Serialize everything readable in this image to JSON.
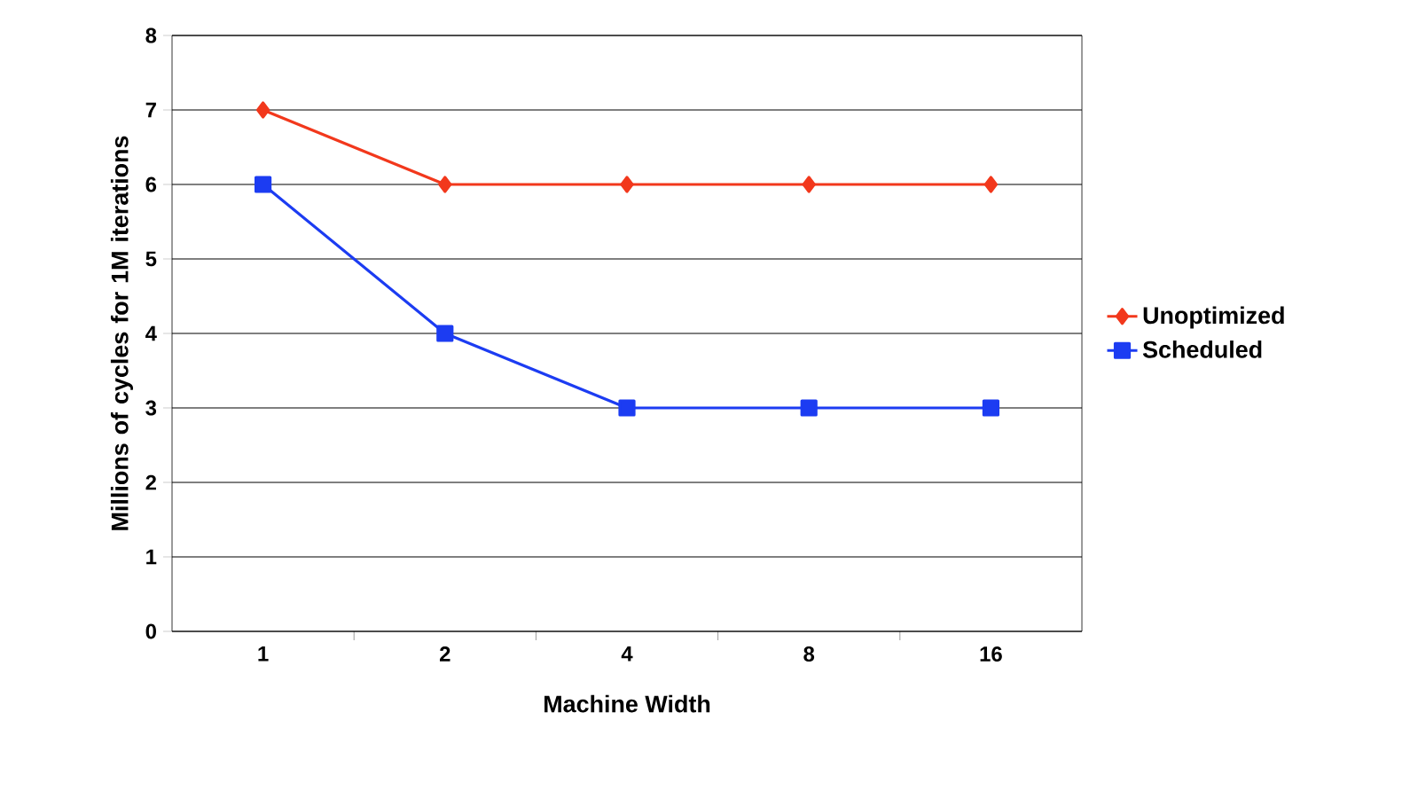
{
  "chart_data": {
    "type": "line",
    "xlabel": "Machine Width",
    "ylabel": "Millions of cycles for 1M iterations",
    "categories": [
      "1",
      "2",
      "4",
      "8",
      "16"
    ],
    "series": [
      {
        "name": "Unoptimized",
        "color": "#f2381c",
        "marker": "diamond",
        "values": [
          7,
          6,
          6,
          6,
          6
        ]
      },
      {
        "name": "Scheduled",
        "color": "#1c3cf2",
        "marker": "square",
        "values": [
          6,
          4,
          3,
          3,
          3
        ]
      }
    ],
    "ylim": [
      0,
      8
    ],
    "yticks": [
      0,
      1,
      2,
      3,
      4,
      5,
      6,
      7,
      8
    ],
    "grid": "y",
    "legend": "right",
    "line_style": "solid"
  }
}
